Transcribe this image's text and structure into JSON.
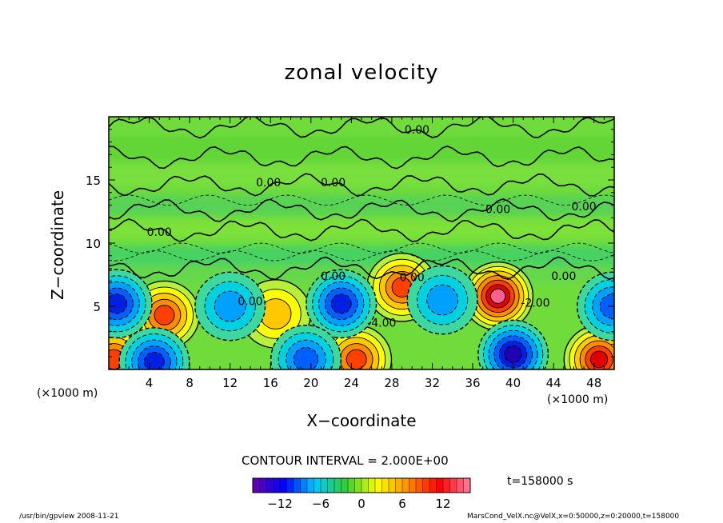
{
  "chart_data": {
    "type": "contour",
    "title": "zonal velocity",
    "xlabel": "X−coordinate",
    "ylabel": "Z−coordinate",
    "x_unit_label": "(×1000 m)",
    "y_unit_label": "(×1000 m)",
    "xlim": [
      0,
      50
    ],
    "ylim": [
      0,
      20
    ],
    "x_ticks": [
      4,
      8,
      12,
      16,
      20,
      24,
      28,
      32,
      36,
      40,
      44,
      48
    ],
    "y_ticks": [
      5,
      10,
      15
    ],
    "contour_interval_label": "CONTOUR INTERVAL = 2.000E+00",
    "time_label": "t=158000 s",
    "contour_labels": [
      {
        "text": "0.00",
        "x": 30.5,
        "y": 19.0
      },
      {
        "text": "0.00",
        "x": 15.8,
        "y": 14.8
      },
      {
        "text": "0.00",
        "x": 22.2,
        "y": 14.8
      },
      {
        "text": "0.00",
        "x": 38.5,
        "y": 12.7
      },
      {
        "text": "0.00",
        "x": 47.0,
        "y": 12.9
      },
      {
        "text": "0.00",
        "x": 5.0,
        "y": 10.9
      },
      {
        "text": "0.00",
        "x": 22.2,
        "y": 7.4
      },
      {
        "text": "0.00",
        "x": 30.0,
        "y": 7.3
      },
      {
        "text": "0.00",
        "x": 45.0,
        "y": 7.4
      },
      {
        "text": "-2.00",
        "x": 42.2,
        "y": 5.3
      },
      {
        "text": "0.00",
        "x": 14.0,
        "y": 5.4
      },
      {
        "text": "-4.00",
        "x": 27.0,
        "y": 3.7
      }
    ],
    "extrema": [
      {
        "sign": "positive",
        "x": 5.5,
        "y": 4.3,
        "value": 10
      },
      {
        "sign": "positive",
        "x": 16.5,
        "y": 4.4,
        "value": 6
      },
      {
        "sign": "positive",
        "x": 24.5,
        "y": 0.8,
        "value": 10
      },
      {
        "sign": "positive",
        "x": 29.0,
        "y": 6.5,
        "value": 10
      },
      {
        "sign": "positive",
        "x": 38.5,
        "y": 5.8,
        "value": 14
      },
      {
        "sign": "positive",
        "x": 48.5,
        "y": 0.8,
        "value": 12
      },
      {
        "sign": "positive",
        "x": 0.5,
        "y": 0.8,
        "value": 10
      },
      {
        "sign": "negative",
        "x": 0.8,
        "y": 5.2,
        "value": -10
      },
      {
        "sign": "negative",
        "x": 12.0,
        "y": 5.0,
        "value": -6
      },
      {
        "sign": "negative",
        "x": 23.0,
        "y": 5.2,
        "value": -10
      },
      {
        "sign": "negative",
        "x": 33.0,
        "y": 5.5,
        "value": -6
      },
      {
        "sign": "negative",
        "x": 40.0,
        "y": 1.2,
        "value": -12
      },
      {
        "sign": "negative",
        "x": 49.8,
        "y": 5.0,
        "value": -8
      },
      {
        "sign": "negative",
        "x": 4.5,
        "y": 0.6,
        "value": -10
      },
      {
        "sign": "negative",
        "x": 19.5,
        "y": 0.8,
        "value": -8
      }
    ],
    "colorbar": {
      "range": [
        -16,
        16
      ],
      "ticks": [
        -12,
        -6,
        0,
        6,
        12
      ],
      "tick_labels": [
        "−12",
        "−6",
        "0",
        "6",
        "12"
      ],
      "colors": [
        "#6a00a8",
        "#0000ff",
        "#00c8ff",
        "#32cd32",
        "#ffff00",
        "#ff8c00",
        "#ff0000",
        "#ff80a0"
      ]
    }
  },
  "footer": {
    "left": "/usr/bin/gpview   2008-11-21",
    "right": "MarsCond_VelX.nc@VelX,x=0:50000,z=0:20000,t=158000"
  }
}
